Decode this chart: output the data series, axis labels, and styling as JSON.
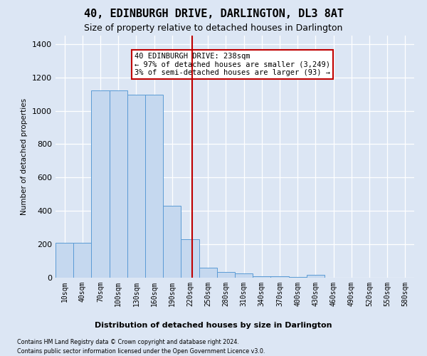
{
  "title": "40, EDINBURGH DRIVE, DARLINGTON, DL3 8AT",
  "subtitle": "Size of property relative to detached houses in Darlington",
  "xlabel": "Distribution of detached houses by size in Darlington",
  "ylabel": "Number of detached properties",
  "footnote1": "Contains HM Land Registry data © Crown copyright and database right 2024.",
  "footnote2": "Contains public sector information licensed under the Open Government Licence v3.0.",
  "vline_x": 238,
  "annotation_title": "40 EDINBURGH DRIVE: 238sqm",
  "annotation_line1": "← 97% of detached houses are smaller (3,249)",
  "annotation_line2": "3% of semi-detached houses are larger (93) →",
  "bin_starts": [
    10,
    40,
    70,
    100,
    130,
    160,
    190,
    220,
    250,
    280,
    310,
    340,
    370,
    400,
    430,
    460,
    490,
    520,
    550,
    580
  ],
  "bin_width": 30,
  "bar_heights": [
    210,
    210,
    1120,
    1120,
    1095,
    1095,
    430,
    230,
    60,
    35,
    25,
    10,
    10,
    5,
    15,
    0,
    0,
    0,
    0,
    0
  ],
  "bar_color": "#c5d8ef",
  "bar_edge_color": "#5b9bd5",
  "vline_color": "#c00000",
  "box_edge_color": "#c00000",
  "background_color": "#dce6f4",
  "plot_bg_color": "#dce6f4",
  "ylim": [
    0,
    1450
  ],
  "yticks": [
    0,
    200,
    400,
    600,
    800,
    1000,
    1200,
    1400
  ],
  "title_fontsize": 11,
  "subtitle_fontsize": 9
}
